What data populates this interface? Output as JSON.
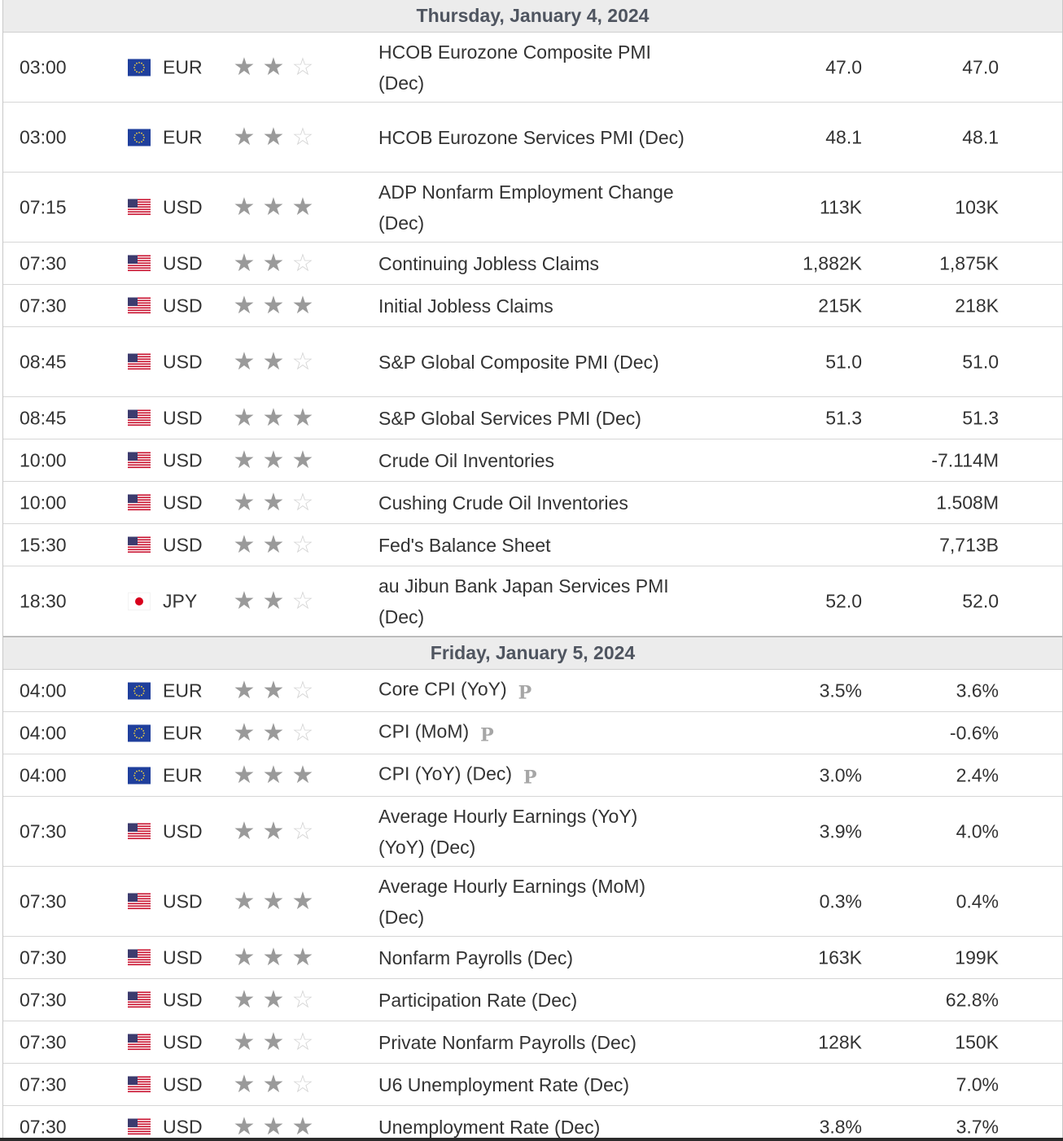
{
  "days": [
    {
      "date": "Thursday, January 4, 2024",
      "events": [
        {
          "time": "03:00",
          "currency": "EUR",
          "flag": "eu-flag",
          "stars": 2,
          "event": "HCOB Eurozone Composite PMI (Dec)",
          "prelim": false,
          "forecast": "47.0",
          "previous": "47.0"
        },
        {
          "time": "03:00",
          "currency": "EUR",
          "flag": "eu-flag",
          "stars": 2,
          "event": "HCOB Eurozone Services PMI (Dec)",
          "prelim": false,
          "forecast": "48.1",
          "previous": "48.1"
        },
        {
          "time": "07:15",
          "currency": "USD",
          "flag": "us-flag",
          "stars": 3,
          "event": "ADP Nonfarm Employment Change (Dec)",
          "prelim": false,
          "forecast": "113K",
          "previous": "103K"
        },
        {
          "time": "07:30",
          "currency": "USD",
          "flag": "us-flag",
          "stars": 2,
          "event": "Continuing Jobless Claims",
          "prelim": false,
          "forecast": "1,882K",
          "previous": "1,875K"
        },
        {
          "time": "07:30",
          "currency": "USD",
          "flag": "us-flag",
          "stars": 3,
          "event": "Initial Jobless Claims",
          "prelim": false,
          "forecast": "215K",
          "previous": "218K"
        },
        {
          "time": "08:45",
          "currency": "USD",
          "flag": "us-flag",
          "stars": 2,
          "event": "S&P Global Composite PMI (Dec)",
          "prelim": false,
          "forecast": "51.0",
          "previous": "51.0"
        },
        {
          "time": "08:45",
          "currency": "USD",
          "flag": "us-flag",
          "stars": 3,
          "event": "S&P Global Services PMI (Dec)",
          "prelim": false,
          "forecast": "51.3",
          "previous": "51.3"
        },
        {
          "time": "10:00",
          "currency": "USD",
          "flag": "us-flag",
          "stars": 3,
          "event": "Crude Oil Inventories",
          "prelim": false,
          "forecast": "",
          "previous": "-7.114M"
        },
        {
          "time": "10:00",
          "currency": "USD",
          "flag": "us-flag",
          "stars": 2,
          "event": "Cushing Crude Oil Inventories",
          "prelim": false,
          "forecast": "",
          "previous": "1.508M"
        },
        {
          "time": "15:30",
          "currency": "USD",
          "flag": "us-flag",
          "stars": 2,
          "event": "Fed's Balance Sheet",
          "prelim": false,
          "forecast": "",
          "previous": "7,713B"
        },
        {
          "time": "18:30",
          "currency": "JPY",
          "flag": "jp-flag",
          "stars": 2,
          "event": "au Jibun Bank Japan Services PMI (Dec)",
          "prelim": false,
          "forecast": "52.0",
          "previous": "52.0"
        }
      ]
    },
    {
      "date": "Friday, January 5, 2024",
      "events": [
        {
          "time": "04:00",
          "currency": "EUR",
          "flag": "eu-flag",
          "stars": 2,
          "event": "Core CPI (YoY)",
          "prelim": true,
          "forecast": "3.5%",
          "previous": "3.6%"
        },
        {
          "time": "04:00",
          "currency": "EUR",
          "flag": "eu-flag",
          "stars": 2,
          "event": "CPI (MoM)",
          "prelim": true,
          "forecast": "",
          "previous": "-0.6%"
        },
        {
          "time": "04:00",
          "currency": "EUR",
          "flag": "eu-flag",
          "stars": 3,
          "event": "CPI (YoY) (Dec)",
          "prelim": true,
          "forecast": "3.0%",
          "previous": "2.4%"
        },
        {
          "time": "07:30",
          "currency": "USD",
          "flag": "us-flag",
          "stars": 2,
          "event": "Average Hourly Earnings (YoY) (YoY) (Dec)",
          "prelim": false,
          "forecast": "3.9%",
          "previous": "4.0%"
        },
        {
          "time": "07:30",
          "currency": "USD",
          "flag": "us-flag",
          "stars": 3,
          "event": "Average Hourly Earnings (MoM) (Dec)",
          "prelim": false,
          "forecast": "0.3%",
          "previous": "0.4%"
        },
        {
          "time": "07:30",
          "currency": "USD",
          "flag": "us-flag",
          "stars": 3,
          "event": "Nonfarm Payrolls (Dec)",
          "prelim": false,
          "forecast": "163K",
          "previous": "199K"
        },
        {
          "time": "07:30",
          "currency": "USD",
          "flag": "us-flag",
          "stars": 2,
          "event": "Participation Rate (Dec)",
          "prelim": false,
          "forecast": "",
          "previous": "62.8%"
        },
        {
          "time": "07:30",
          "currency": "USD",
          "flag": "us-flag",
          "stars": 2,
          "event": "Private Nonfarm Payrolls (Dec)",
          "prelim": false,
          "forecast": "128K",
          "previous": "150K"
        },
        {
          "time": "07:30",
          "currency": "USD",
          "flag": "us-flag",
          "stars": 2,
          "event": "U6 Unemployment Rate (Dec)",
          "prelim": false,
          "forecast": "",
          "previous": "7.0%"
        },
        {
          "time": "07:30",
          "currency": "USD",
          "flag": "us-flag",
          "stars": 3,
          "event": "Unemployment Rate (Dec)",
          "prelim": false,
          "forecast": "3.8%",
          "previous": "3.7%"
        }
      ]
    }
  ],
  "prelim_marker": "P",
  "star_glyph": "★",
  "star_empty_glyph": "☆",
  "colors": {
    "header_bg": "#ececec",
    "star_on": "#9a9a9a",
    "star_off": "#d4d4d4",
    "eu_blue": "#1f3f9c",
    "us_red": "#c8102e",
    "jp_red": "#d8001c"
  }
}
